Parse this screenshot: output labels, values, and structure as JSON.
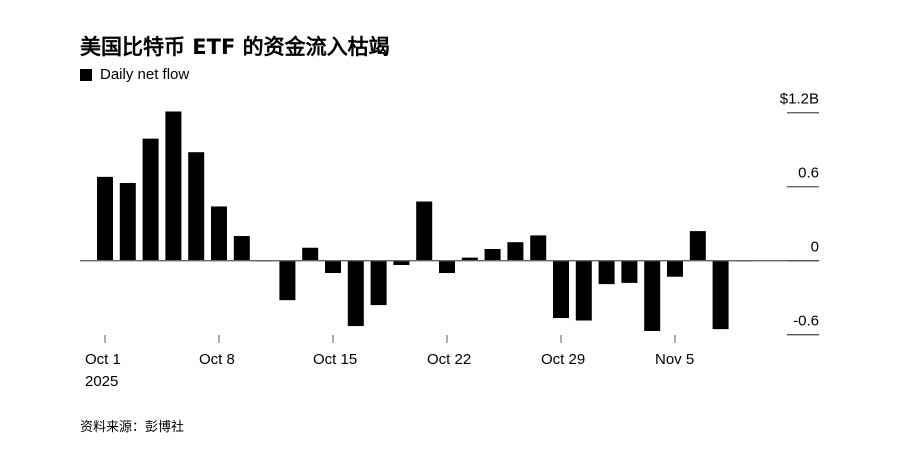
{
  "title": "美国比特币 ETF 的资金流入枯竭",
  "source": "资料来源：彭博社",
  "chart_data": {
    "type": "bar",
    "title": "美国比特币 ETF 的资金流入枯竭",
    "legend": {
      "entries": [
        "Daily net flow"
      ],
      "placement": "top-left"
    },
    "series": [
      {
        "name": "Daily net flow",
        "color": "#000000",
        "dates": [
          "2025-10-01",
          "2025-10-02",
          "2025-10-03",
          "2025-10-06",
          "2025-10-07",
          "2025-10-08",
          "2025-10-09",
          "2025-10-10",
          "2025-10-13",
          "2025-10-14",
          "2025-10-15",
          "2025-10-16",
          "2025-10-17",
          "2025-10-20",
          "2025-10-21",
          "2025-10-22",
          "2025-10-23",
          "2025-10-24",
          "2025-10-27",
          "2025-10-28",
          "2025-10-29",
          "2025-10-30",
          "2025-10-31",
          "2025-11-03",
          "2025-11-04",
          "2025-11-05",
          "2025-11-06",
          "2025-11-07",
          "2025-11-10"
        ],
        "values": [
          0.68,
          0.63,
          0.99,
          1.21,
          0.88,
          0.44,
          0.2,
          -0.005,
          -0.32,
          0.105,
          -0.1,
          -0.53,
          -0.36,
          -0.035,
          0.48,
          -0.1,
          0.025,
          0.095,
          0.15,
          0.205,
          -0.465,
          -0.485,
          -0.19,
          -0.18,
          -0.57,
          -0.13,
          0.24,
          -0.555,
          -0.005
        ]
      }
    ],
    "x_ticks": [
      {
        "label": "Oct 1",
        "sublabel": "2025",
        "index": 0
      },
      {
        "label": "Oct 8",
        "index": 5
      },
      {
        "label": "Oct 15",
        "index": 10
      },
      {
        "label": "Oct 22",
        "index": 15
      },
      {
        "label": "Oct 29",
        "index": 20
      },
      {
        "label": "Nov 5",
        "index": 25
      }
    ],
    "y_ticks": [
      {
        "value": 1.2,
        "label": "$1.2B"
      },
      {
        "value": 0.6,
        "label": "0.6"
      },
      {
        "value": 0,
        "label": "0"
      },
      {
        "value": -0.6,
        "label": "-0.6"
      }
    ],
    "ylim": [
      -0.6,
      1.2
    ],
    "y_axis_position": "right",
    "unit": "USD billions",
    "grid": false
  }
}
